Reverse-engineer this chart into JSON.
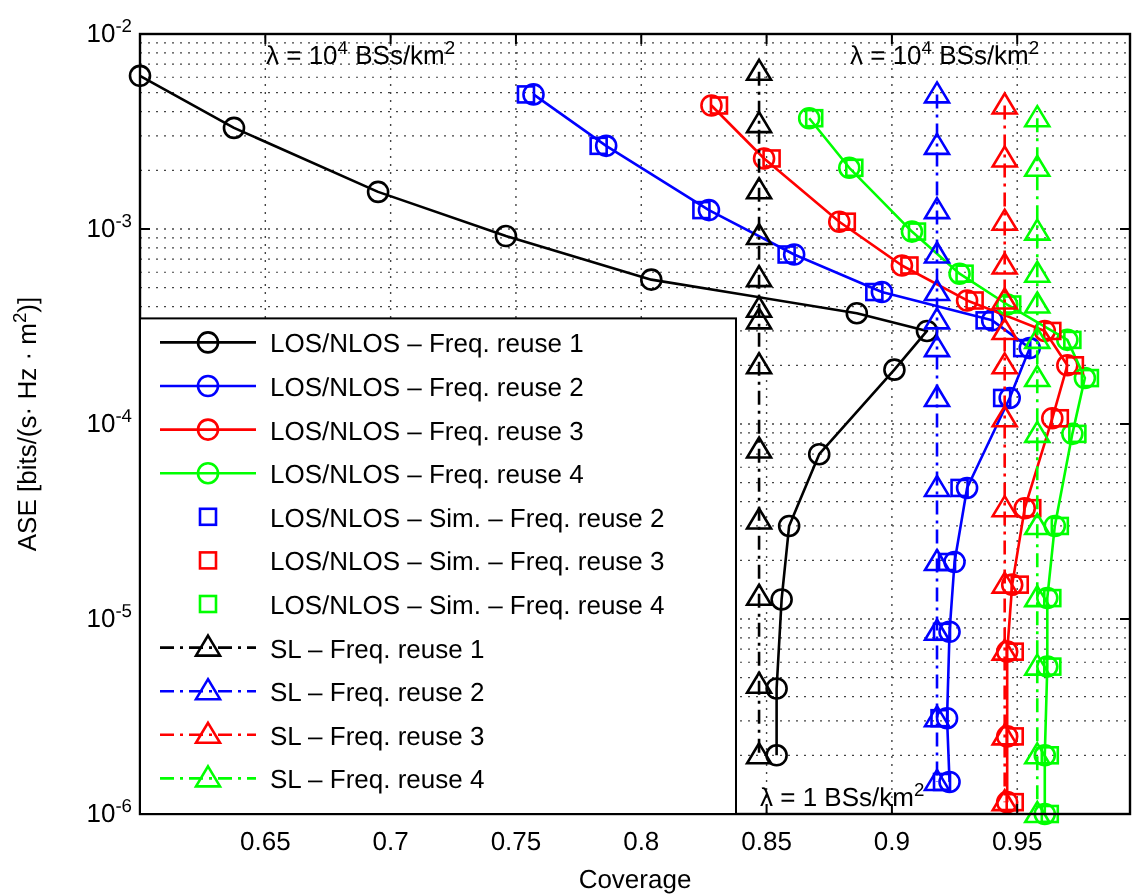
{
  "chart_data": {
    "type": "line",
    "xlabel": "Coverage",
    "ylabel": "ASE [bits/(s· Hz · m$^{2}$)]",
    "log": "y",
    "xlim": [
      0.6,
      0.995
    ],
    "ylim": [
      1e-06,
      0.01
    ],
    "xticks": [
      0.65,
      0.7,
      0.75,
      0.8,
      0.85,
      0.9,
      0.95
    ],
    "yticks": [
      {
        "value": 1e-06,
        "label": "10$^{-6}$"
      },
      {
        "value": 1e-05,
        "label": "10$^{-5}$"
      },
      {
        "value": 0.0001,
        "label": "10$^{-4}$"
      },
      {
        "value": 0.001,
        "label": "10$^{-3}$"
      },
      {
        "value": 0.01,
        "label": "10$^{-2}$"
      }
    ],
    "grid": true,
    "legend": "bottom left",
    "series": [
      {
        "name": "LOS/NLOS – Freq. reuse 1",
        "color": "#000000",
        "marker": "circle",
        "line_style": "solid",
        "x": [
          0.6,
          0.6375,
          0.695,
          0.746,
          0.804,
          0.886,
          0.914,
          0.901,
          0.871,
          0.859,
          0.856,
          0.854,
          0.854
        ],
        "values": [
          0.0061,
          0.0033,
          0.00155,
          0.00092,
          0.00055,
          0.00037,
          0.0003,
          0.00019,
          7e-05,
          3e-05,
          1.26e-05,
          4.4e-06,
          2e-06
        ]
      },
      {
        "name": "LOS/NLOS – Freq. reuse 2",
        "color": "#0000ff",
        "marker": "circle",
        "line_style": "solid",
        "x": [
          0.757,
          0.786,
          0.827,
          0.861,
          0.896,
          0.94,
          0.955,
          0.947,
          0.93,
          0.925,
          0.923,
          0.922,
          0.923
        ],
        "values": [
          0.0049,
          0.00267,
          0.00125,
          0.00074,
          0.000475,
          0.00034,
          0.000245,
          0.000136,
          4.7e-05,
          1.96e-05,
          8.6e-06,
          3.1e-06,
          1.46e-06
        ]
      },
      {
        "name": "LOS/NLOS – Freq. reuse 3",
        "color": "#ff0000",
        "marker": "circle",
        "line_style": "solid",
        "x": [
          0.828,
          0.849,
          0.879,
          0.904,
          0.93,
          0.961,
          0.97,
          0.964,
          0.953,
          0.948,
          0.946,
          0.946,
          0.946
        ],
        "values": [
          0.0043,
          0.0023,
          0.00109,
          0.00065,
          0.00043,
          0.0003,
          0.0002,
          0.000107,
          3.7e-05,
          1.5e-05,
          6.8e-06,
          2.5e-06,
          1.15e-06
        ]
      },
      {
        "name": "LOS/NLOS – Freq. reuse 4",
        "color": "#00ff00",
        "marker": "circle",
        "line_style": "solid",
        "x": [
          0.867,
          0.883,
          0.908,
          0.927,
          0.946,
          0.97,
          0.977,
          0.972,
          0.965,
          0.962,
          0.962,
          0.961,
          0.961
        ],
        "values": [
          0.0037,
          0.00206,
          0.00097,
          0.00059,
          0.00041,
          0.00027,
          0.000172,
          8.9e-05,
          3e-05,
          1.28e-05,
          5.7e-06,
          2e-06,
          1e-06
        ]
      },
      {
        "name": "LOS/NLOS – Sim. – Freq. reuse 2",
        "type": "scatter",
        "color": "#0000ff",
        "marker": "square",
        "x": [
          0.754,
          0.783,
          0.824,
          0.858,
          0.893,
          0.937,
          0.952,
          0.944,
          0.927,
          0.922,
          0.92,
          0.919,
          0.92
        ],
        "values": [
          0.0049,
          0.00267,
          0.00125,
          0.00074,
          0.000475,
          0.00034,
          0.000245,
          0.000136,
          4.7e-05,
          1.96e-05,
          8.6e-06,
          3.1e-06,
          1.46e-06
        ]
      },
      {
        "name": "LOS/NLOS – Sim. – Freq. reuse 3",
        "type": "scatter",
        "color": "#ff0000",
        "marker": "square",
        "x": [
          0.831,
          0.852,
          0.882,
          0.907,
          0.933,
          0.964,
          0.973,
          0.967,
          0.956,
          0.951,
          0.949,
          0.949,
          0.949
        ],
        "values": [
          0.0043,
          0.0023,
          0.00109,
          0.00065,
          0.00043,
          0.0003,
          0.0002,
          0.000107,
          3.7e-05,
          1.5e-05,
          6.8e-06,
          2.5e-06,
          1.15e-06
        ]
      },
      {
        "name": "LOS/NLOS – Sim. – Freq. reuse 4",
        "type": "scatter",
        "color": "#00ff00",
        "marker": "square",
        "x": [
          0.869,
          0.885,
          0.91,
          0.929,
          0.948,
          0.972,
          0.979,
          0.974,
          0.967,
          0.964,
          0.964,
          0.963,
          0.963
        ],
        "values": [
          0.0037,
          0.00206,
          0.00097,
          0.00059,
          0.00041,
          0.00027,
          0.000172,
          8.9e-05,
          3e-05,
          1.28e-05,
          5.7e-06,
          2e-06,
          1e-06
        ]
      },
      {
        "name": "SL – Freq. reuse 1",
        "color": "#000000",
        "marker": "triangle",
        "line_style": "dashed",
        "x": [
          0.847,
          0.847,
          0.847,
          0.847,
          0.847,
          0.847,
          0.847,
          0.847,
          0.847,
          0.847,
          0.847,
          0.847,
          0.847
        ],
        "values": [
          0.0064,
          0.00345,
          0.00158,
          0.00092,
          0.00056,
          0.00039,
          0.00034,
          0.0002,
          7.4e-05,
          3.2e-05,
          1.3e-05,
          4.6e-06,
          2e-06
        ]
      },
      {
        "name": "SL – Freq. reuse 2",
        "color": "#0000ff",
        "marker": "triangle",
        "line_style": "dashed",
        "x": [
          0.918,
          0.918,
          0.918,
          0.918,
          0.918,
          0.918,
          0.918,
          0.918,
          0.918,
          0.918,
          0.918,
          0.918,
          0.918
        ],
        "values": [
          0.0049,
          0.00267,
          0.00125,
          0.00074,
          0.000475,
          0.00034,
          0.000245,
          0.000136,
          4.7e-05,
          1.96e-05,
          8.6e-06,
          3.1e-06,
          1.46e-06
        ]
      },
      {
        "name": "SL – Freq. reuse 3",
        "color": "#ff0000",
        "marker": "triangle",
        "line_style": "dashed",
        "x": [
          0.945,
          0.945,
          0.945,
          0.945,
          0.945,
          0.945,
          0.945,
          0.945,
          0.945,
          0.945,
          0.945,
          0.945,
          0.945
        ],
        "values": [
          0.0043,
          0.0023,
          0.00109,
          0.00065,
          0.00043,
          0.0003,
          0.0002,
          0.000107,
          3.7e-05,
          1.5e-05,
          6.8e-06,
          2.5e-06,
          1.15e-06
        ]
      },
      {
        "name": "SL – Freq. reuse 4",
        "color": "#00ff00",
        "marker": "triangle",
        "line_style": "dashed",
        "x": [
          0.958,
          0.958,
          0.958,
          0.958,
          0.958,
          0.958,
          0.958,
          0.958,
          0.958,
          0.958,
          0.958,
          0.958,
          0.958
        ],
        "values": [
          0.0037,
          0.00206,
          0.00097,
          0.00059,
          0.00041,
          0.00027,
          0.000172,
          8.9e-05,
          3e-05,
          1.28e-05,
          5.7e-06,
          2e-06,
          1e-06
        ]
      }
    ],
    "annotations": [
      "λ = 10$^{4}$ BSs/km$^{2}$",
      "λ = 10$^{4}$ BSs/km$^{2}$",
      "λ = 1 BSs/km$^{2}$"
    ]
  }
}
